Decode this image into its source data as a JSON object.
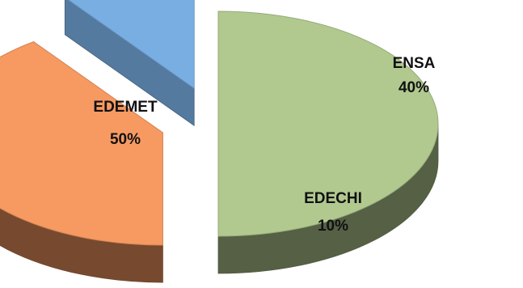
{
  "chart_data": {
    "type": "pie",
    "style": "3d-exploded",
    "title": "",
    "slices": [
      {
        "label": "EDEMET",
        "value": 50,
        "pct_text": "50%",
        "color": "#b1c98f"
      },
      {
        "label": "ENSA",
        "value": 40,
        "pct_text": "40%",
        "color": "#f79a62"
      },
      {
        "label": "EDECHI",
        "value": 10,
        "pct_text": "10%",
        "color": "#79aee3"
      }
    ],
    "legend": "none"
  }
}
